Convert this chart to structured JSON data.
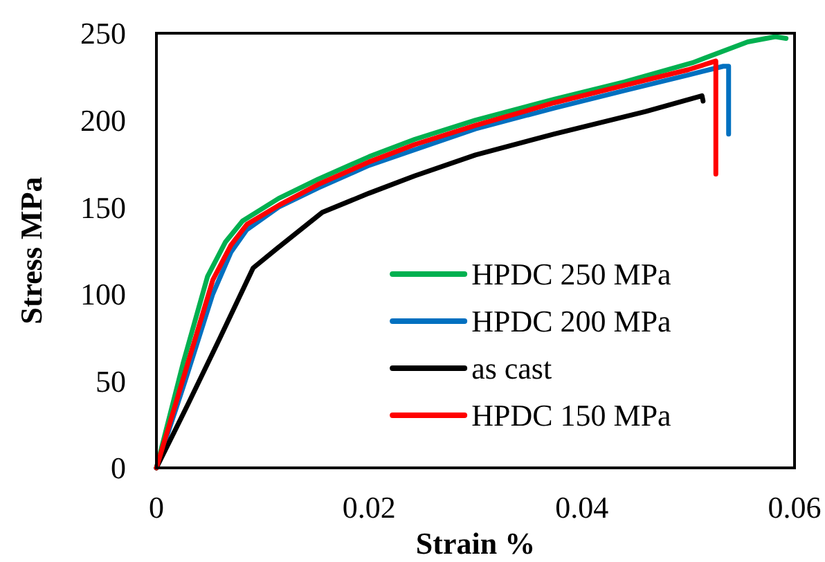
{
  "chart_data": {
    "type": "line",
    "xlabel": "Strain %",
    "ylabel": "Stress MPa",
    "xlim": [
      0,
      0.06
    ],
    "ylim": [
      0,
      250
    ],
    "xticks": [
      0,
      0.02,
      0.04,
      0.06
    ],
    "yticks": [
      0,
      50,
      100,
      150,
      200,
      250
    ],
    "grid": false,
    "legend": "bottom right",
    "line_style": "solid",
    "series": [
      {
        "name": "HPDC 250 MPa",
        "color": "#00b050",
        "x": [
          0,
          0.0025,
          0.0048,
          0.0065,
          0.0081,
          0.0115,
          0.0152,
          0.02,
          0.0243,
          0.03,
          0.0374,
          0.044,
          0.0504,
          0.0556,
          0.0582,
          0.0592
        ],
        "values": [
          0,
          60,
          110,
          130,
          142,
          155,
          166,
          179,
          189,
          200,
          212,
          222,
          233,
          245,
          248,
          247
        ]
      },
      {
        "name": "HPDC 200 MPa",
        "color": "#0070c0",
        "x": [
          0,
          0.0027,
          0.0053,
          0.007,
          0.0085,
          0.0115,
          0.0152,
          0.02,
          0.0243,
          0.03,
          0.0374,
          0.044,
          0.05,
          0.0533,
          0.0538,
          0.0538
        ],
        "values": [
          0,
          50,
          100,
          124,
          137,
          150,
          161,
          174,
          183,
          195,
          207,
          217,
          226,
          231,
          231,
          192
        ]
      },
      {
        "name": "as cast",
        "color": "#000000",
        "x": [
          0,
          0.003,
          0.006,
          0.0091,
          0.0113,
          0.0156,
          0.02,
          0.0243,
          0.03,
          0.0374,
          0.046,
          0.0513,
          0.0514
        ],
        "values": [
          0,
          37,
          75,
          115,
          126,
          147,
          158,
          168,
          180,
          192,
          205,
          214,
          211
        ]
      },
      {
        "name": "HPDC 150 MPa",
        "color": "#ff0000",
        "x": [
          0,
          0.0027,
          0.0053,
          0.007,
          0.0085,
          0.0115,
          0.0152,
          0.02,
          0.0243,
          0.03,
          0.0374,
          0.044,
          0.05,
          0.0526,
          0.0526
        ],
        "values": [
          0,
          55,
          108,
          128,
          140,
          151,
          163,
          176,
          186,
          197,
          210,
          220,
          229,
          234,
          169
        ]
      }
    ]
  }
}
